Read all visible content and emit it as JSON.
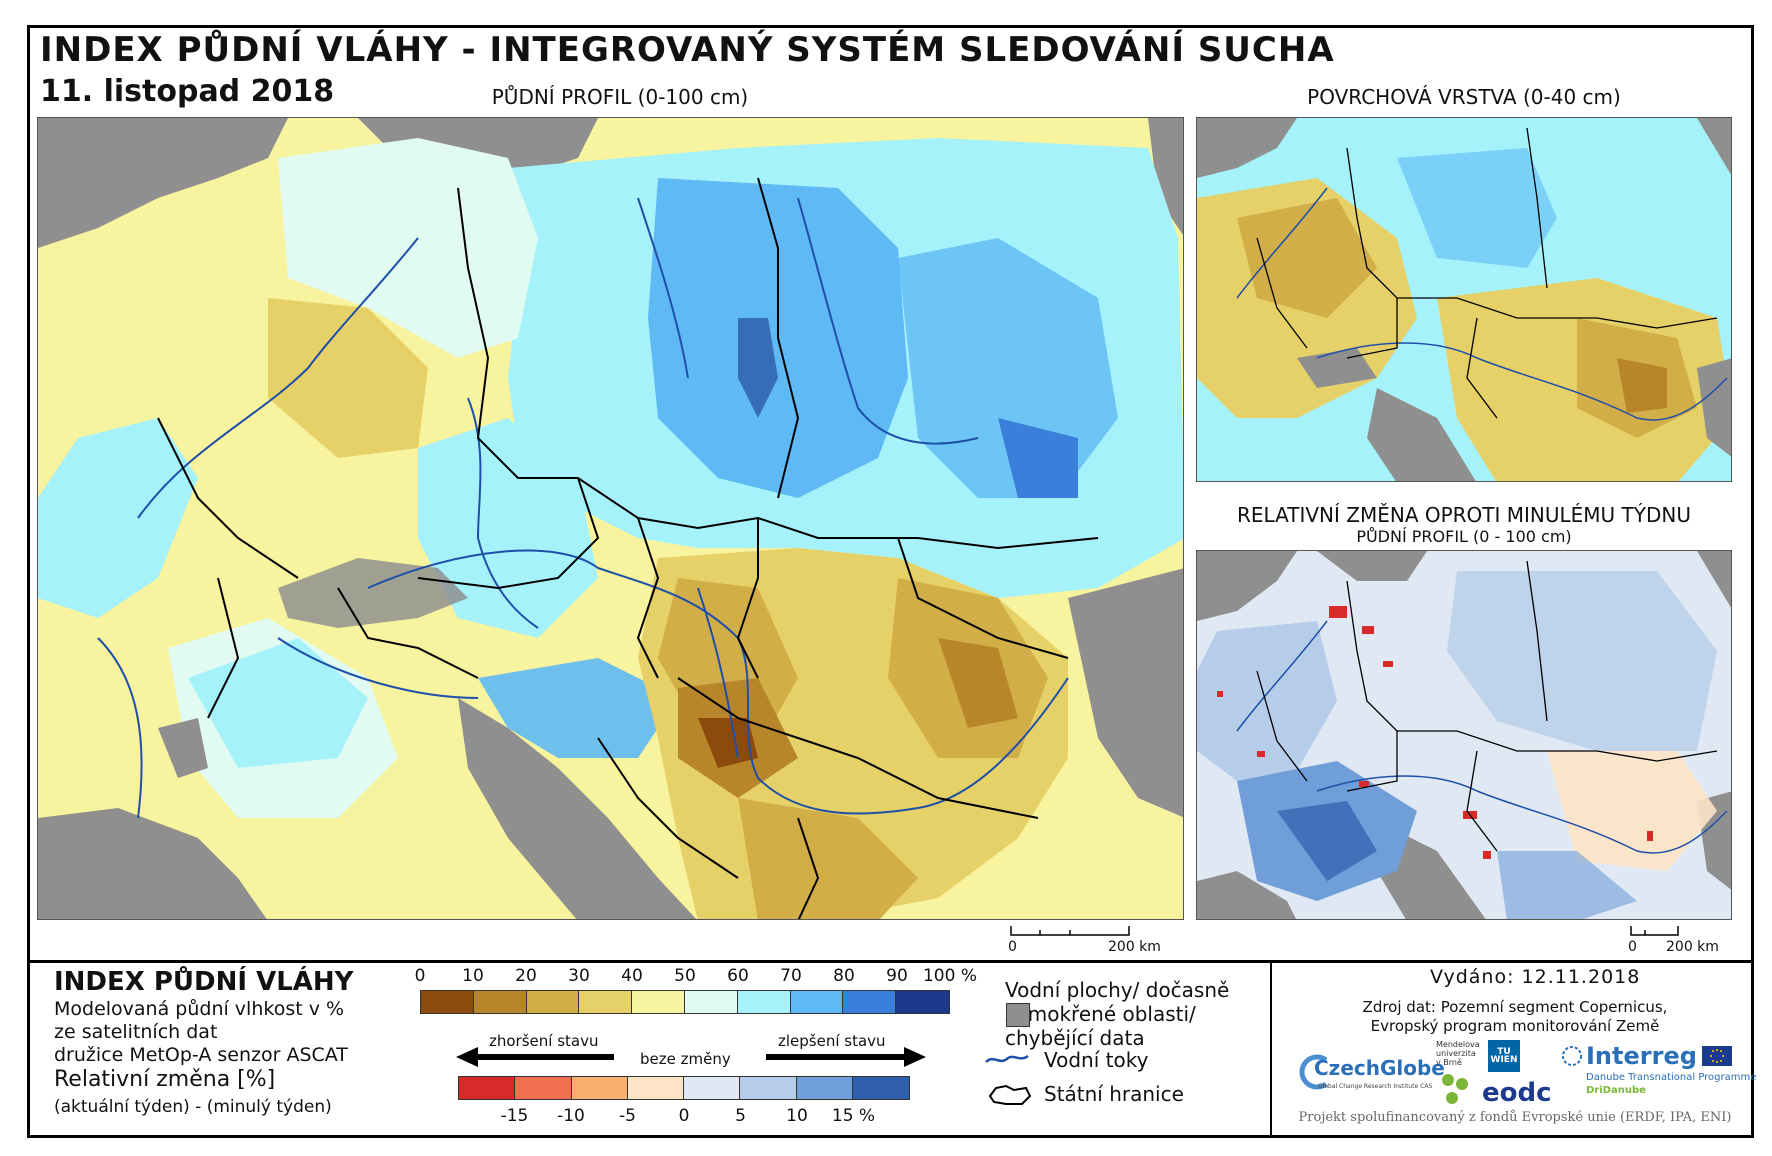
{
  "header": {
    "title": "INDEX PŮDNÍ VLÁHY - INTEGROVANÝ SYSTÉM SLEDOVÁNÍ SUCHA",
    "date": "11. listopad 2018"
  },
  "maps": {
    "main_label": "PŮDNÍ PROFIL (0-100 cm)",
    "surface_label": "POVRCHOVÁ VRSTVA (0-40 cm)",
    "change_label": "RELATIVNÍ ZMĚNA OPROTI MINULÉMU TÝDNU",
    "change_sublabel": "PŮDNÍ PROFIL (0 - 100 cm)"
  },
  "scale": {
    "zero": "0",
    "main_dist": "200 km",
    "small_dist": "200 km"
  },
  "legend": {
    "title": "INDEX PŮDNÍ VLÁHY",
    "desc1": "Modelovaná půdní vlhkost v %",
    "desc2": "ze satelitních dat",
    "desc3": "družice MetOp-A senzor ASCAT",
    "rel_title": "Relativní změna [%]",
    "rel_sub": "(aktuální týden) - (minulý týden)",
    "moisture_ticks": [
      "0",
      "10",
      "20",
      "30",
      "40",
      "50",
      "60",
      "70",
      "80",
      "90",
      "100 %"
    ],
    "moisture_colors": [
      "#8c4a0c",
      "#b8862a",
      "#d2ae48",
      "#e5d168",
      "#f7f39e",
      "#e2fbf2",
      "#a6f2fb",
      "#5eb9f4",
      "#3a7fd9",
      "#1b3a8e"
    ],
    "worse_label": "zhoršení stavu",
    "same_label": "beze změny",
    "better_label": "zlepšení stavu",
    "change_ticks": [
      "-15",
      "-10",
      "-5",
      "0",
      "5",
      "10",
      "15 %"
    ],
    "change_colors": [
      "#d92a2a",
      "#f07050",
      "#f8b070",
      "#fde4c6",
      "#dfe8f3",
      "#b6cde9",
      "#6f9ed8",
      "#2f5eae"
    ],
    "key_water": "Vodní plochy/ dočasně",
    "key_water2": "zamokřené oblasti/",
    "key_water3": "chybějící data",
    "key_rivers": "Vodní toky",
    "key_borders": "Státní hranice"
  },
  "info": {
    "issued": "Vydáno: 12.11.2018",
    "source1": "Zdroj dat: Pozemní segment Copernicus,",
    "source2": "Evropský program monitorování Země",
    "logo_czechglobe": "CzechGlobe",
    "logo_czechglobe_sub": "Global Change Research Institute CAS",
    "logo_mendel": "Mendelova univerzita v Brně",
    "logo_tuwien": "TU WIEN",
    "logo_eodc": "eodc",
    "logo_interreg": "Interreg",
    "logo_interreg_sub1": "Danube Transnational Programme",
    "logo_interreg_sub2": "DriDanube",
    "project": "Projekt spolufinancovaný z fondů Evropské unie (ERDF, IPA, ENI)"
  },
  "colors": {
    "sea": "#8f8f8f",
    "river": "#1f4fa8",
    "border": "#000000"
  }
}
